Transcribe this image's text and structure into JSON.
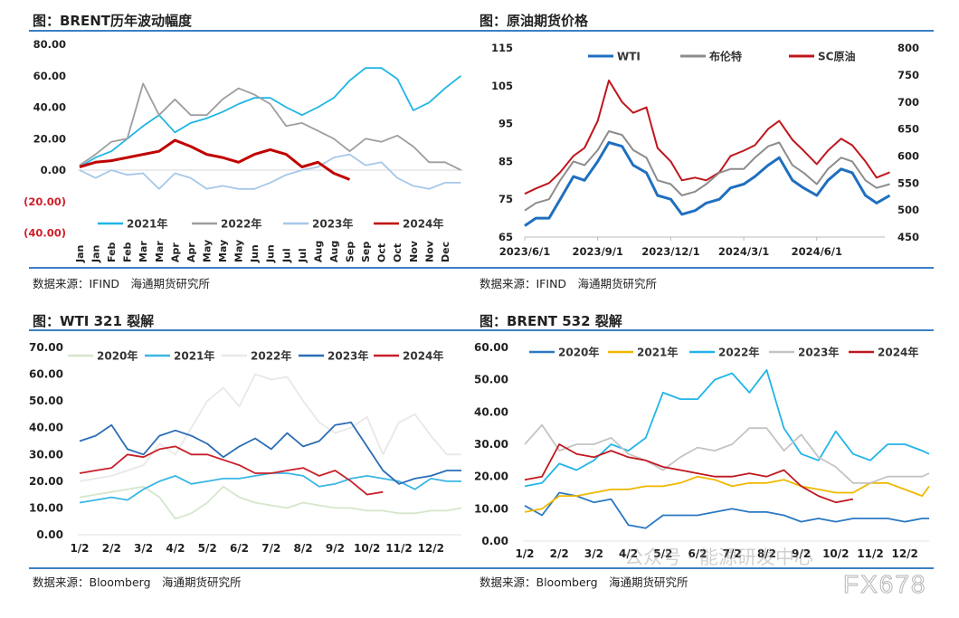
{
  "panels": [
    {
      "title": "图：BRENT历年波动幅度",
      "source": "数据来源：IFIND　海通期货研究所"
    },
    {
      "title": "图：原油期货价格",
      "source": "数据来源：IFIND　海通期货研究所"
    },
    {
      "title": "图：WTI 321 裂解",
      "source": "数据来源：Bloomberg　海通期货研究所"
    },
    {
      "title": "图：BRENT 532 裂解",
      "source": "数据来源：Bloomberg　海通期货研究所"
    }
  ],
  "watermark": {
    "text": "公众号 · 能源研发中心",
    "logo_text": "FX678"
  },
  "chart_data": [
    {
      "type": "line",
      "title": "图：BRENT历年波动幅度",
      "x_tick_labels": [
        "Jan",
        "Jan",
        "Feb",
        "Feb",
        "Mar",
        "Mar",
        "Apr",
        "Apr",
        "May",
        "May",
        "May",
        "Jun",
        "Jun",
        "Jul",
        "Jul",
        "Aug",
        "Aug",
        "Sep",
        "Sep",
        "Oct",
        "Oct",
        "Nov",
        "Nov",
        "Dec"
      ],
      "y_tick_labels": [
        "80.00",
        "60.00",
        "40.00",
        "20.00",
        "0.00",
        "(20.00)",
        "(40.00)"
      ],
      "y_tick_values": [
        80,
        60,
        40,
        20,
        0,
        -20,
        -40
      ],
      "ylim": [
        -40,
        80
      ],
      "negative_label_color": "#d0202a",
      "legend_position": "bottom",
      "series": [
        {
          "name": "2021年",
          "color": "#1fb5e6",
          "values": [
            2,
            8,
            12,
            20,
            28,
            35,
            24,
            30,
            33,
            37,
            42,
            46,
            46,
            40,
            35,
            40,
            46,
            57,
            65,
            65,
            58,
            38,
            43,
            52,
            60
          ]
        },
        {
          "name": "2022年",
          "color": "#9e9e9e",
          "values": [
            3,
            10,
            18,
            20,
            55,
            35,
            45,
            35,
            35,
            45,
            52,
            48,
            42,
            28,
            30,
            25,
            20,
            12,
            20,
            18,
            22,
            15,
            5,
            5,
            0
          ]
        },
        {
          "name": "2023年",
          "color": "#a6c8e8",
          "values": [
            0,
            -5,
            0,
            -3,
            -2,
            -12,
            -2,
            -5,
            -12,
            -10,
            -12,
            -12,
            -8,
            -3,
            0,
            2,
            8,
            10,
            3,
            5,
            -5,
            -10,
            -12,
            -8,
            -8
          ]
        },
        {
          "name": "2024年",
          "color": "#c00000",
          "values": [
            2,
            5,
            6,
            8,
            10,
            12,
            19,
            15,
            10,
            8,
            5,
            10,
            13,
            10,
            2,
            5,
            -2,
            -6
          ]
        }
      ]
    },
    {
      "type": "line",
      "title": "图：原油期货价格",
      "x_tick_labels": [
        "2023/6/1",
        "2023/9/1",
        "2023/12/1",
        "2024/3/1",
        "2024/6/1"
      ],
      "x": [
        "2023/6/1",
        "2023/6/15",
        "2023/7/1",
        "2023/7/15",
        "2023/8/1",
        "2023/8/15",
        "2023/9/1",
        "2023/9/15",
        "2023/10/1",
        "2023/10/15",
        "2023/11/1",
        "2023/11/15",
        "2023/12/1",
        "2023/12/15",
        "2024/1/1",
        "2024/1/15",
        "2024/2/1",
        "2024/2/15",
        "2024/3/1",
        "2024/3/15",
        "2024/4/1",
        "2024/4/15",
        "2024/5/1",
        "2024/5/15",
        "2024/6/1",
        "2024/6/15",
        "2024/7/1",
        "2024/7/15",
        "2024/8/1",
        "2024/8/15",
        "2024/9/1"
      ],
      "y_left_tick_labels": [
        "115",
        "105",
        "95",
        "85",
        "75",
        "65"
      ],
      "ylim_left": [
        65,
        115
      ],
      "y_right_tick_labels": [
        "800",
        "750",
        "700",
        "650",
        "600",
        "550",
        "500",
        "450"
      ],
      "ylim_right": [
        450,
        800
      ],
      "legend_position": "top",
      "series": [
        {
          "name": "WTI",
          "axis": "left",
          "color": "#1f6fbf",
          "values": [
            68,
            70,
            70,
            75,
            81,
            80,
            85,
            90,
            89,
            84,
            82,
            76,
            75,
            71,
            72,
            74,
            75,
            78,
            79,
            81,
            84,
            86,
            80,
            78,
            76,
            80,
            83,
            82,
            76,
            74,
            76
          ]
        },
        {
          "name": "布伦特",
          "axis": "left",
          "color": "#8c8c8c",
          "values": [
            72,
            74,
            75,
            80,
            85,
            84,
            88,
            93,
            92,
            88,
            86,
            80,
            79,
            76,
            77,
            79,
            82,
            83,
            83,
            86,
            89,
            90,
            84,
            82,
            79,
            83,
            86,
            85,
            80,
            78,
            79
          ]
        },
        {
          "name": "SC原油",
          "axis": "right",
          "color": "#c0161d",
          "values": [
            530,
            540,
            550,
            570,
            600,
            615,
            665,
            740,
            700,
            680,
            690,
            615,
            590,
            555,
            560,
            555,
            570,
            600,
            610,
            620,
            650,
            665,
            630,
            610,
            585,
            610,
            632,
            620,
            590,
            560,
            570
          ]
        }
      ]
    },
    {
      "type": "line",
      "title": "图：WTI 321 裂解",
      "x_tick_labels": [
        "1/2",
        "2/2",
        "3/2",
        "4/2",
        "5/2",
        "6/2",
        "7/2",
        "8/2",
        "9/2",
        "10/2",
        "11/2",
        "12/2"
      ],
      "y_tick_labels": [
        "70.00",
        "60.00",
        "50.00",
        "40.00",
        "30.00",
        "20.00",
        "10.00",
        "0.00"
      ],
      "ylim": [
        0,
        70
      ],
      "legend_position": "top",
      "series": [
        {
          "name": "2020年",
          "color": "#d5e6cc",
          "values": [
            14,
            15,
            16,
            17,
            18,
            14,
            6,
            8,
            12,
            18,
            14,
            12,
            11,
            10,
            12,
            11,
            10,
            10,
            9,
            9,
            8,
            8,
            9,
            9,
            10
          ]
        },
        {
          "name": "2021年",
          "color": "#3ab6e5",
          "values": [
            12,
            13,
            14,
            13,
            17,
            20,
            22,
            19,
            20,
            21,
            21,
            22,
            23,
            23,
            22,
            18,
            19,
            21,
            22,
            21,
            20,
            17,
            21,
            20,
            20
          ]
        },
        {
          "name": "2022年",
          "color": "#e8e8e8",
          "values": [
            20,
            21,
            22,
            24,
            26,
            34,
            30,
            40,
            50,
            55,
            48,
            60,
            58,
            59,
            50,
            42,
            38,
            40,
            44,
            30,
            42,
            45,
            37,
            30,
            30
          ]
        },
        {
          "name": "2023年",
          "color": "#2a6db5",
          "values": [
            35,
            37,
            41,
            32,
            30,
            37,
            39,
            37,
            34,
            29,
            33,
            36,
            32,
            38,
            33,
            35,
            41,
            42,
            33,
            24,
            19,
            21,
            22,
            24,
            24
          ]
        },
        {
          "name": "2024年",
          "color": "#c8202a",
          "values": [
            23,
            24,
            25,
            30,
            29,
            32,
            33,
            30,
            30,
            28,
            26,
            23,
            23,
            24,
            25,
            22,
            24,
            20,
            15,
            16
          ]
        }
      ]
    },
    {
      "type": "line",
      "title": "图：BRENT 532 裂解",
      "x_tick_labels": [
        "1/2",
        "2/2",
        "3/2",
        "4/2",
        "5/2",
        "6/2",
        "7/2",
        "8/2",
        "9/2",
        "10/2",
        "11/2",
        "12/2"
      ],
      "y_tick_labels": [
        "60.00",
        "50.00",
        "40.00",
        "30.00",
        "20.00",
        "10.00",
        "0.00"
      ],
      "ylim": [
        0,
        60
      ],
      "legend_position": "top",
      "series": [
        {
          "name": "2020年",
          "color": "#2a78c2",
          "values": [
            11,
            8,
            15,
            14,
            12,
            13,
            5,
            4,
            8,
            8,
            8,
            9,
            10,
            9,
            9,
            8,
            6,
            7,
            6,
            7,
            7,
            7,
            6,
            7,
            7
          ]
        },
        {
          "name": "2021年",
          "color": "#f0b800",
          "values": [
            9,
            10,
            14,
            14,
            15,
            16,
            16,
            17,
            17,
            18,
            20,
            19,
            17,
            18,
            18,
            19,
            17,
            16,
            15,
            15,
            18,
            18,
            16,
            14,
            17
          ]
        },
        {
          "name": "2022年",
          "color": "#22b5e8",
          "values": [
            17,
            18,
            24,
            22,
            25,
            30,
            28,
            32,
            46,
            44,
            44,
            50,
            52,
            46,
            53,
            35,
            27,
            25,
            34,
            27,
            25,
            30,
            30,
            28,
            27
          ]
        },
        {
          "name": "2023年",
          "color": "#c4c4c4",
          "values": [
            30,
            36,
            28,
            30,
            30,
            32,
            27,
            25,
            22,
            26,
            29,
            28,
            30,
            35,
            35,
            28,
            33,
            26,
            23,
            18,
            18,
            20,
            20,
            20,
            21
          ]
        },
        {
          "name": "2024年",
          "color": "#c0181f",
          "values": [
            19,
            20,
            30,
            27,
            26,
            28,
            26,
            25,
            23,
            22,
            21,
            20,
            20,
            21,
            20,
            22,
            17,
            14,
            12,
            13
          ]
        }
      ]
    }
  ]
}
